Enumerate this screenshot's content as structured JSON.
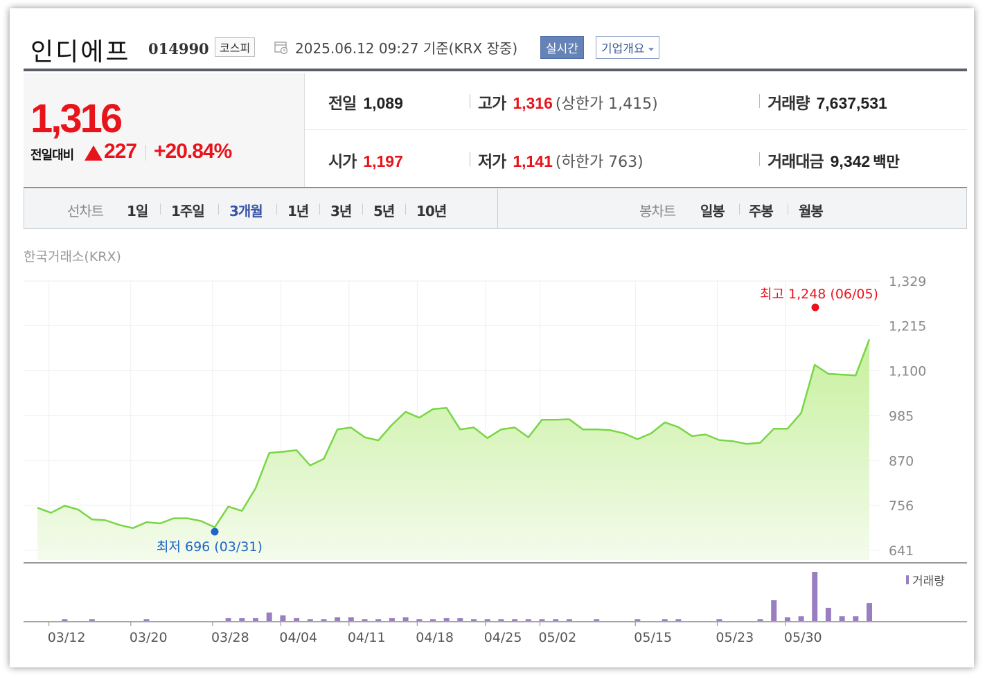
{
  "header": {
    "company": "인디에프",
    "code": "014990",
    "market": "코스피",
    "date_text": "2025.06.12 09:27 기준(KRX 장중)",
    "realtime_label": "실시간",
    "corp_info_label": "기업개요"
  },
  "price": {
    "current": "1,316",
    "change_label": "전일대비",
    "change_amount": "227",
    "change_pct": "+20.84%"
  },
  "stats": {
    "prev_close_label": "전일",
    "prev_close": "1,089",
    "high_label": "고가",
    "high": "1,316",
    "upper_limit_text": "(상한가 1,415)",
    "volume_label": "거래량",
    "volume": "7,637,531",
    "open_label": "시가",
    "open": "1,197",
    "low_label": "저가",
    "low": "1,141",
    "lower_limit_text": "(하한가 763)",
    "amount_label": "거래대금",
    "amount": "9,342",
    "amount_unit": "백만"
  },
  "tabs": {
    "line_chart_label": "선차트",
    "periods": [
      "1일",
      "1주일",
      "3개월",
      "1년",
      "3년",
      "5년",
      "10년"
    ],
    "active_period": "3개월",
    "candle_chart_label": "봉차트",
    "candles": [
      "일봉",
      "주봉",
      "월봉"
    ]
  },
  "chart_data": {
    "type": "area",
    "source_label": "한국거래소(KRX)",
    "y_ticks": [
      1329,
      1215,
      1100,
      985,
      870,
      756,
      641
    ],
    "ylim": [
      641,
      1329
    ],
    "x_tick_labels": [
      "03/12",
      "03/20",
      "03/28",
      "04/04",
      "04/11",
      "04/18",
      "04/25",
      "05/02",
      "05/15",
      "05/23",
      "05/30"
    ],
    "values": [
      750,
      737,
      755,
      745,
      720,
      718,
      706,
      698,
      713,
      710,
      723,
      723,
      716,
      700,
      753,
      742,
      800,
      890,
      893,
      897,
      858,
      875,
      950,
      955,
      930,
      922,
      962,
      995,
      980,
      1002,
      1005,
      950,
      955,
      928,
      950,
      955,
      930,
      975,
      975,
      976,
      950,
      950,
      948,
      940,
      925,
      940,
      968,
      956,
      933,
      937,
      923,
      920,
      913,
      916,
      952,
      952,
      992,
      1115,
      1092,
      1090,
      1088,
      1180
    ],
    "max_annotation": {
      "label": "최고",
      "value": "1,248",
      "date": "(06/05)"
    },
    "min_annotation": {
      "label": "최저",
      "value": "696",
      "date": "(03/31)"
    },
    "volume_legend": "거래량",
    "volume": [
      0,
      0,
      2,
      0,
      2,
      0,
      0,
      0,
      2,
      0,
      0,
      0,
      0,
      0,
      3,
      3,
      3,
      9,
      6,
      3,
      2,
      2,
      4,
      4,
      2,
      2,
      3,
      4,
      2,
      2,
      3,
      3,
      2,
      2,
      2,
      2,
      2,
      2,
      2,
      2,
      0,
      2,
      0,
      0,
      2,
      0,
      2,
      2,
      0,
      0,
      2,
      0,
      0,
      2,
      22,
      4,
      5,
      52,
      14,
      5,
      5,
      19
    ],
    "volume_max": 52,
    "colors": {
      "line": "#78d645",
      "fill_top": "#c6f09d",
      "fill_bottom": "#f4fbec",
      "volume_bar": "#9a7fc0",
      "max_dot": "#e8141c",
      "min_dot": "#1e63c8"
    }
  }
}
